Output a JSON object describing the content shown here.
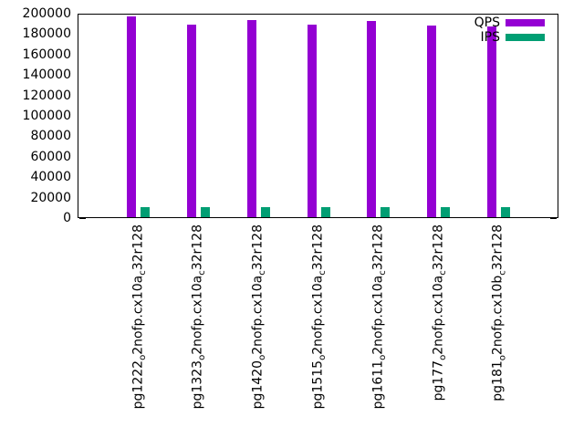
{
  "chart_data": {
    "type": "bar",
    "title": "",
    "xlabel": "",
    "ylabel": "",
    "grid": false,
    "ylim": [
      0,
      200000
    ],
    "yticks": [
      0,
      20000,
      40000,
      60000,
      80000,
      100000,
      120000,
      140000,
      160000,
      180000,
      200000
    ],
    "categories": [
      "pg1222o2nofp.cx10ac32r128",
      "pg1323o2nofp.cx10ac32r128",
      "pg1420o2nofp.cx10ac32r128",
      "pg1515o2nofp.cx10ac32r128",
      "pg1611o2nofp.cx10ac32r128",
      "pg177o2nofp.cx10ac32r128",
      "pg181o2nofp.cx10bc32r128"
    ],
    "category_parts": [
      [
        {
          "text": "pg1222",
          "sub": false
        },
        {
          "text": "o",
          "sub": true
        },
        {
          "text": "2nofp.cx10a",
          "sub": false
        },
        {
          "text": "c",
          "sub": true
        },
        {
          "text": "32r128",
          "sub": false
        }
      ],
      [
        {
          "text": "pg1323",
          "sub": false
        },
        {
          "text": "o",
          "sub": true
        },
        {
          "text": "2nofp.cx10a",
          "sub": false
        },
        {
          "text": "c",
          "sub": true
        },
        {
          "text": "32r128",
          "sub": false
        }
      ],
      [
        {
          "text": "pg1420",
          "sub": false
        },
        {
          "text": "o",
          "sub": true
        },
        {
          "text": "2nofp.cx10a",
          "sub": false
        },
        {
          "text": "c",
          "sub": true
        },
        {
          "text": "32r128",
          "sub": false
        }
      ],
      [
        {
          "text": "pg1515",
          "sub": false
        },
        {
          "text": "o",
          "sub": true
        },
        {
          "text": "2nofp.cx10a",
          "sub": false
        },
        {
          "text": "c",
          "sub": true
        },
        {
          "text": "32r128",
          "sub": false
        }
      ],
      [
        {
          "text": "pg1611",
          "sub": false
        },
        {
          "text": "o",
          "sub": true
        },
        {
          "text": "2nofp.cx10a",
          "sub": false
        },
        {
          "text": "c",
          "sub": true
        },
        {
          "text": "32r128",
          "sub": false
        }
      ],
      [
        {
          "text": "pg177",
          "sub": false
        },
        {
          "text": "o",
          "sub": true
        },
        {
          "text": "2nofp.cx10a",
          "sub": false
        },
        {
          "text": "c",
          "sub": true
        },
        {
          "text": "32r128",
          "sub": false
        }
      ],
      [
        {
          "text": "pg181",
          "sub": false
        },
        {
          "text": "o",
          "sub": true
        },
        {
          "text": "2nofp.cx10b",
          "sub": false
        },
        {
          "text": "c",
          "sub": true
        },
        {
          "text": "32r128",
          "sub": false
        }
      ]
    ],
    "series": [
      {
        "name": "QPS",
        "color": "#9400D3",
        "values": [
          196500,
          188800,
          193000,
          188500,
          192000,
          187300,
          187000
        ]
      },
      {
        "name": "IPS",
        "color": "#009E73",
        "values": [
          10000,
          10000,
          10000,
          10000,
          10000,
          10000,
          9800
        ]
      }
    ],
    "legend": {
      "position": "top-right",
      "entries": [
        "QPS",
        "IPS"
      ]
    },
    "colors": {
      "axis": "#000000",
      "background": "#ffffff"
    }
  }
}
